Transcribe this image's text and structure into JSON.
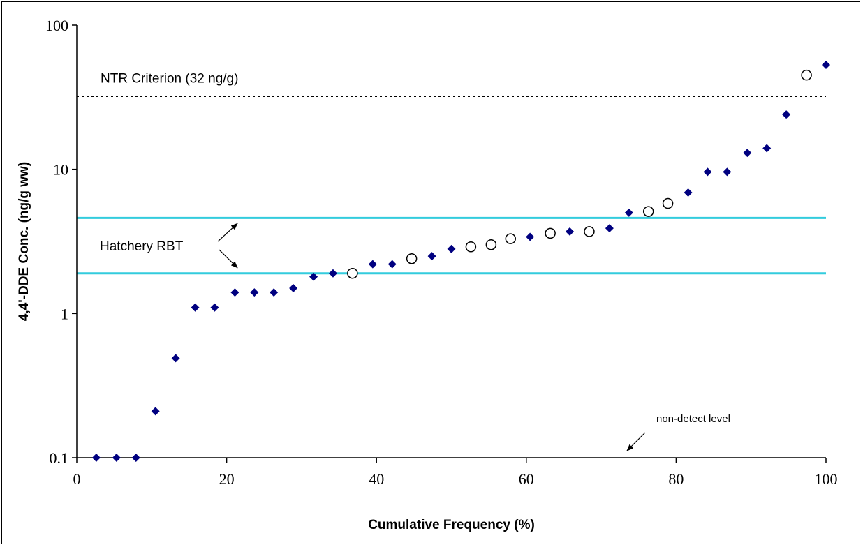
{
  "chart_data": {
    "type": "scatter",
    "xlabel": "Cumulative Frequency (%)",
    "ylabel": "4,4'-DDE Conc. (ng/g ww)",
    "xlim": [
      0,
      100
    ],
    "ylim": [
      0.1,
      100
    ],
    "yscale": "log",
    "x_ticks": [
      0,
      20,
      40,
      60,
      80,
      100
    ],
    "y_ticks": [
      0.1,
      1,
      10,
      100
    ],
    "x_tick_labels": [
      "0",
      "20",
      "40",
      "60",
      "80",
      "100"
    ],
    "y_tick_labels": [
      "0.1",
      "1",
      "10",
      "100"
    ],
    "grid": false,
    "legend": "none",
    "series": [
      {
        "marker": "diamond-filled",
        "color": "#000080",
        "points": [
          {
            "x": 2.6,
            "y": 0.1
          },
          {
            "x": 5.3,
            "y": 0.1
          },
          {
            "x": 7.9,
            "y": 0.1
          },
          {
            "x": 10.5,
            "y": 0.21
          },
          {
            "x": 13.2,
            "y": 0.49
          },
          {
            "x": 15.8,
            "y": 1.1
          },
          {
            "x": 18.4,
            "y": 1.1
          },
          {
            "x": 21.1,
            "y": 1.4
          },
          {
            "x": 23.7,
            "y": 1.4
          },
          {
            "x": 26.3,
            "y": 1.4
          },
          {
            "x": 28.9,
            "y": 1.5
          },
          {
            "x": 31.6,
            "y": 1.8
          },
          {
            "x": 34.2,
            "y": 1.9
          },
          {
            "x": 39.5,
            "y": 2.2
          },
          {
            "x": 42.1,
            "y": 2.2
          },
          {
            "x": 47.4,
            "y": 2.5
          },
          {
            "x": 50.0,
            "y": 2.8
          },
          {
            "x": 60.5,
            "y": 3.4
          },
          {
            "x": 65.8,
            "y": 3.7
          },
          {
            "x": 71.1,
            "y": 3.9
          },
          {
            "x": 73.7,
            "y": 5.0
          },
          {
            "x": 81.6,
            "y": 6.9
          },
          {
            "x": 84.2,
            "y": 9.6
          },
          {
            "x": 86.8,
            "y": 9.6
          },
          {
            "x": 89.5,
            "y": 13
          },
          {
            "x": 92.1,
            "y": 14
          },
          {
            "x": 94.7,
            "y": 24
          },
          {
            "x": 100.0,
            "y": 53
          }
        ]
      },
      {
        "marker": "circle-open",
        "color": "#000000",
        "points": [
          {
            "x": 36.8,
            "y": 1.9
          },
          {
            "x": 44.7,
            "y": 2.4
          },
          {
            "x": 52.6,
            "y": 2.9
          },
          {
            "x": 55.3,
            "y": 3.0
          },
          {
            "x": 57.9,
            "y": 3.3
          },
          {
            "x": 63.2,
            "y": 3.6
          },
          {
            "x": 68.4,
            "y": 3.7
          },
          {
            "x": 76.3,
            "y": 5.1
          },
          {
            "x": 78.9,
            "y": 5.8
          },
          {
            "x": 97.4,
            "y": 45
          }
        ]
      }
    ],
    "reference_lines": [
      {
        "y": 32,
        "style": "dotted",
        "color": "#000000",
        "label": "NTR Criterion (32 ng/g)"
      },
      {
        "y": 4.6,
        "style": "solid",
        "color": "#33ccdd"
      },
      {
        "y": 1.9,
        "style": "solid",
        "color": "#33ccdd"
      }
    ],
    "annotations": {
      "hatchery_label": "Hatchery RBT",
      "nondetect_label": "non-detect level"
    }
  }
}
